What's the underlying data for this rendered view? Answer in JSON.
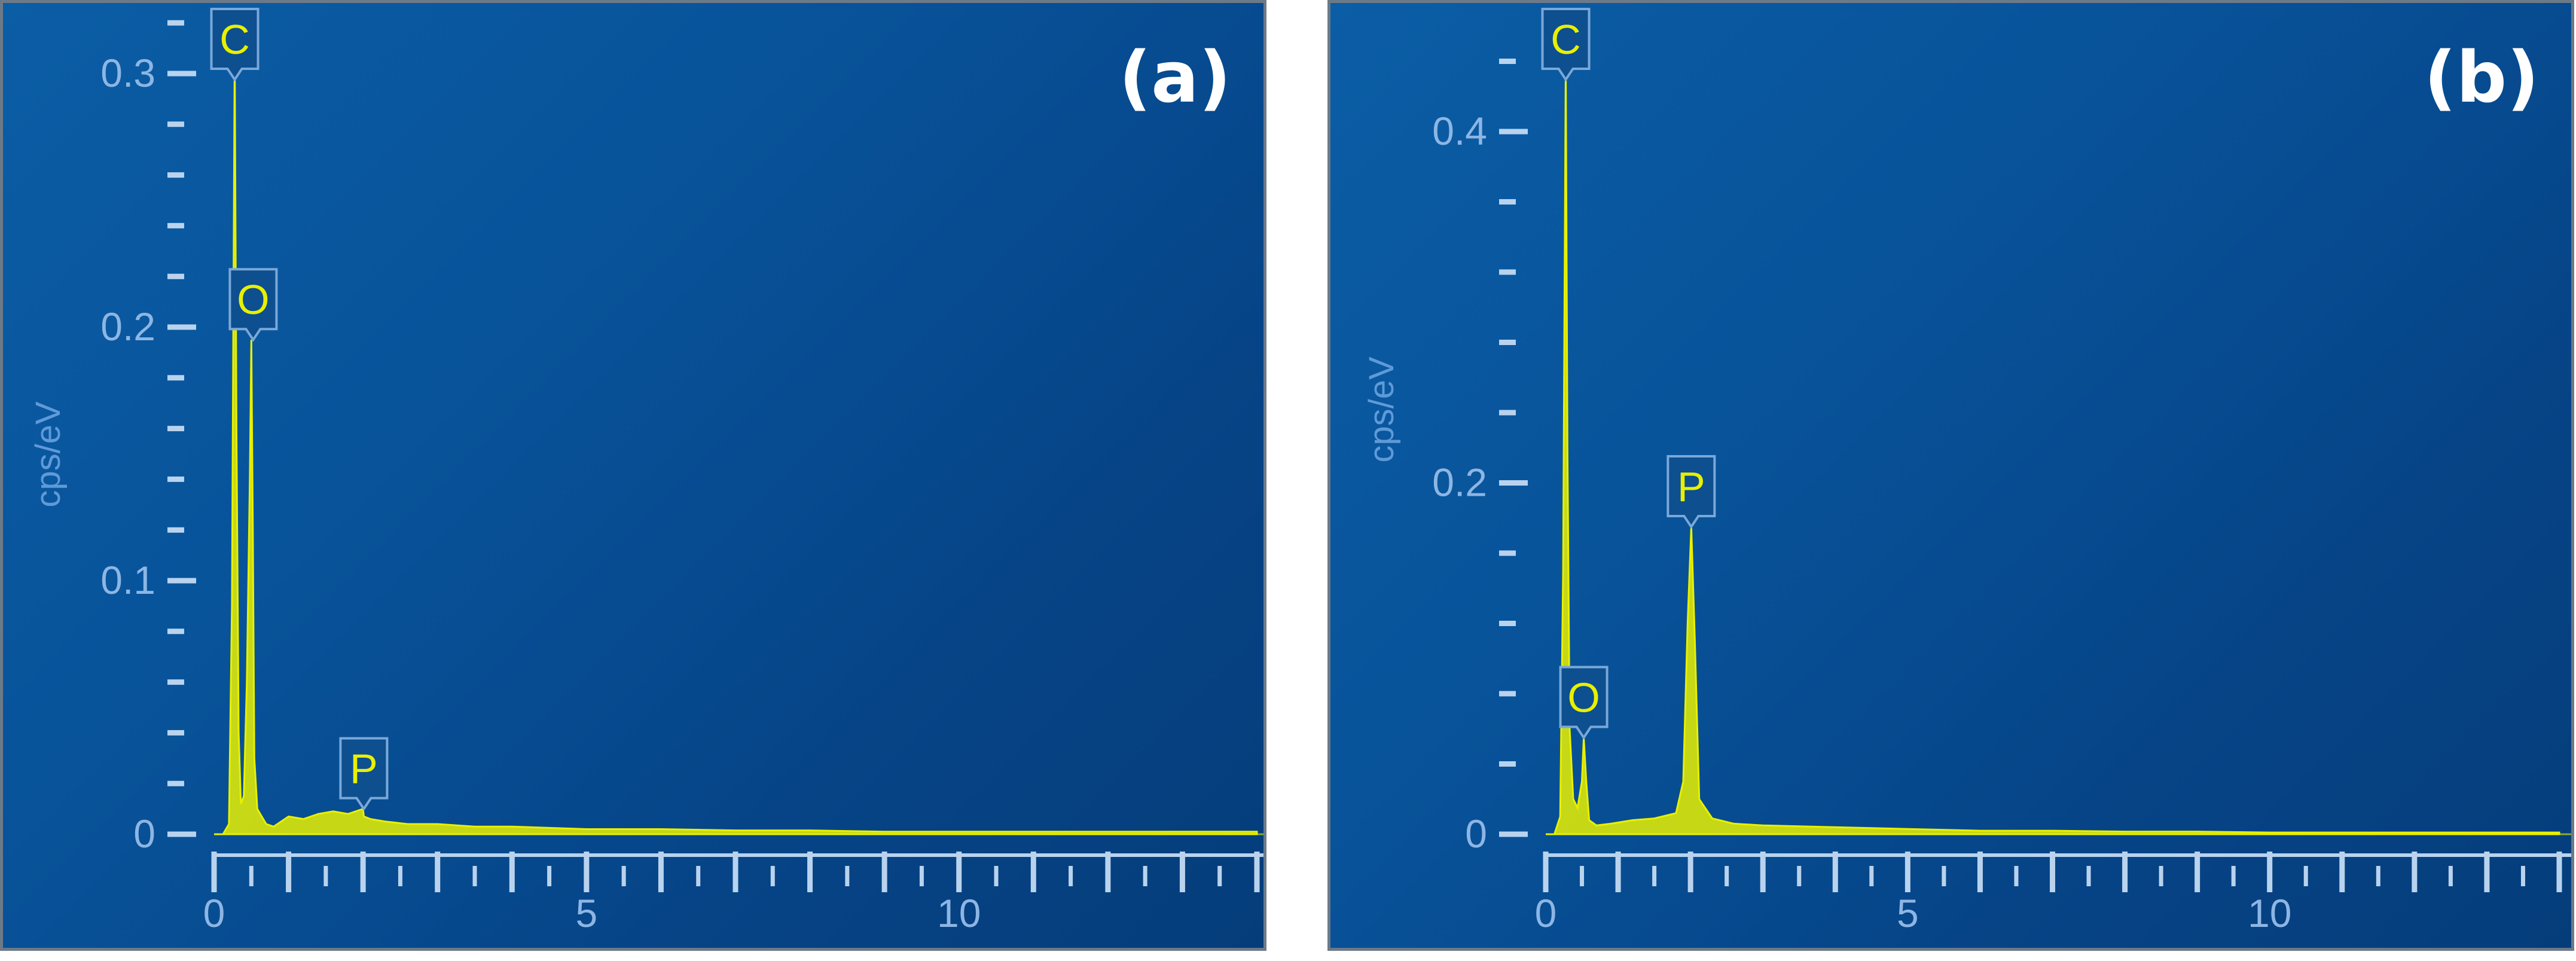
{
  "chart_data": [
    {
      "type": "line",
      "panel_label": "(a)",
      "ylabel": "cps/eV",
      "xlabel": "",
      "xlim": [
        0,
        14
      ],
      "ylim": [
        0,
        0.32
      ],
      "x_ticks": [
        0,
        5,
        10
      ],
      "x_tick_labels": [
        "0",
        "5",
        "10"
      ],
      "y_ticks": [
        0,
        0.1,
        0.2,
        0.3
      ],
      "y_tick_labels": [
        "0",
        "0.1",
        "0.2",
        "0.3"
      ],
      "line_color": "#e8f000",
      "series": [
        {
          "x": [
            0.0,
            0.12,
            0.2,
            0.24,
            0.277,
            0.3,
            0.33,
            0.36,
            0.4,
            0.44,
            0.48,
            0.5,
            0.52,
            0.54,
            0.58,
            0.62,
            0.7,
            0.8,
            1.0,
            1.2,
            1.4,
            1.6,
            1.8,
            2.0,
            2.01,
            2.1,
            2.3,
            2.6,
            3.0,
            3.5,
            4.0,
            5.0,
            6.0,
            7.0,
            8.0,
            9.0,
            10.0,
            11.0,
            12.0,
            13.0,
            14.0
          ],
          "y": [
            0,
            0,
            0.004,
            0.09,
            0.31,
            0.16,
            0.04,
            0.012,
            0.015,
            0.06,
            0.14,
            0.195,
            0.12,
            0.03,
            0.01,
            0.008,
            0.004,
            0.003,
            0.007,
            0.006,
            0.008,
            0.009,
            0.008,
            0.01,
            0.007,
            0.006,
            0.005,
            0.004,
            0.004,
            0.003,
            0.003,
            0.002,
            0.002,
            0.0015,
            0.0015,
            0.001,
            0.001,
            0.001,
            0.001,
            0.001,
            0.001
          ]
        }
      ],
      "peaks": [
        {
          "label": "C",
          "x": 0.277,
          "y": 0.31
        },
        {
          "label": "O",
          "x": 0.525,
          "y": 0.195
        },
        {
          "label": "P",
          "x": 2.01,
          "y": 0.01
        }
      ]
    },
    {
      "type": "line",
      "panel_label": "(b)",
      "ylabel": "cps/eV",
      "xlabel": "",
      "xlim": [
        0,
        14
      ],
      "ylim": [
        0,
        0.46
      ],
      "x_ticks": [
        0,
        5,
        10
      ],
      "x_tick_labels": [
        "0",
        "5",
        "10"
      ],
      "y_ticks": [
        0,
        0.2,
        0.4
      ],
      "y_tick_labels": [
        "0",
        "0.2",
        "0.4"
      ],
      "line_color": "#e8f000",
      "series": [
        {
          "x": [
            0.0,
            0.12,
            0.2,
            0.24,
            0.277,
            0.3,
            0.33,
            0.38,
            0.44,
            0.5,
            0.525,
            0.56,
            0.6,
            0.7,
            0.9,
            1.2,
            1.5,
            1.8,
            1.9,
            1.96,
            2.01,
            2.06,
            2.12,
            2.3,
            2.6,
            3.0,
            4.0,
            5.0,
            6.0,
            7.0,
            8.0,
            9.0,
            10.0,
            11.0,
            12.0,
            13.0,
            14.0
          ],
          "y": [
            0,
            0,
            0.01,
            0.15,
            0.44,
            0.22,
            0.06,
            0.02,
            0.015,
            0.03,
            0.055,
            0.03,
            0.008,
            0.005,
            0.006,
            0.008,
            0.009,
            0.012,
            0.03,
            0.12,
            0.175,
            0.11,
            0.02,
            0.009,
            0.006,
            0.005,
            0.004,
            0.003,
            0.002,
            0.002,
            0.0015,
            0.0015,
            0.001,
            0.001,
            0.001,
            0.001,
            0.001
          ]
        }
      ],
      "peaks": [
        {
          "label": "C",
          "x": 0.277,
          "y": 0.44
        },
        {
          "label": "O",
          "x": 0.525,
          "y": 0.055
        },
        {
          "label": "P",
          "x": 2.01,
          "y": 0.175
        }
      ]
    }
  ]
}
